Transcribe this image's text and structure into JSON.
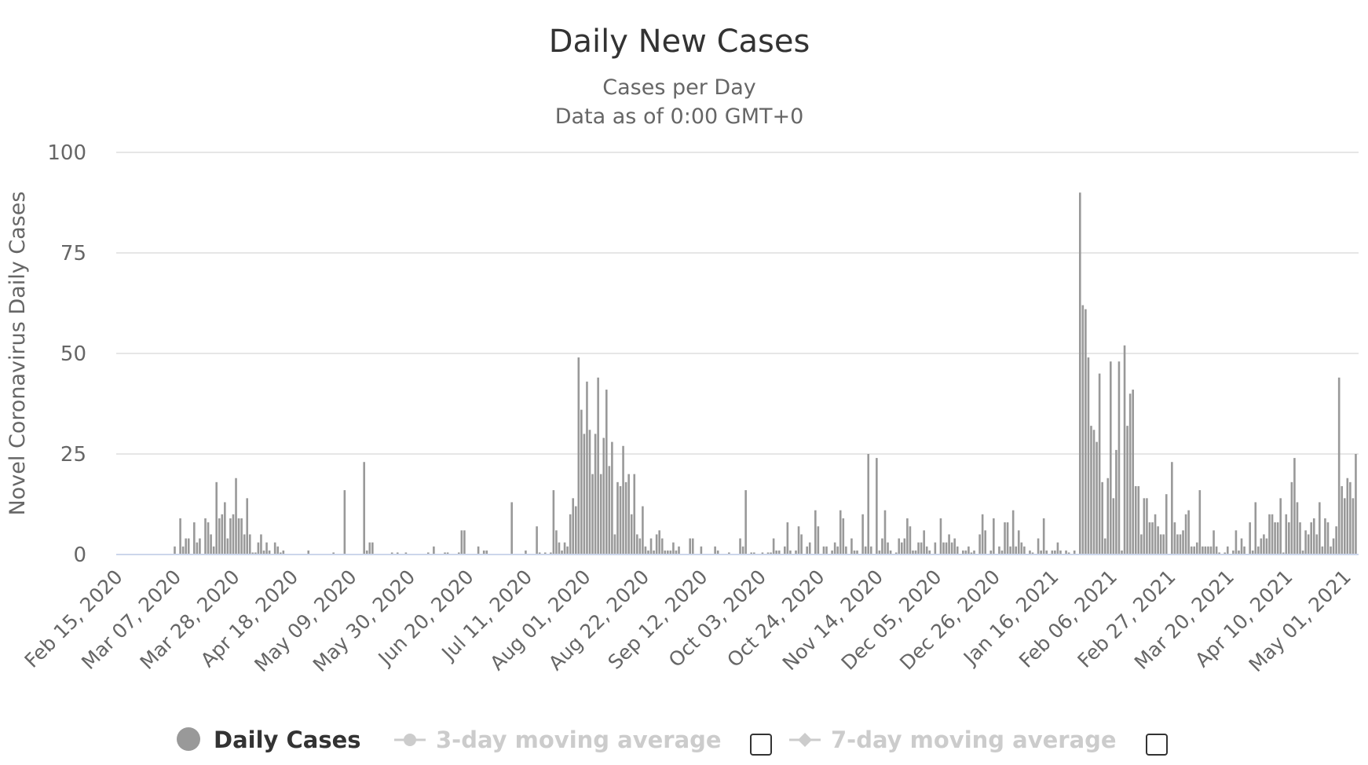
{
  "chart_data": {
    "type": "bar",
    "title": "Daily New Cases",
    "subtitle": [
      "Cases per Day",
      "Data as of 0:00 GMT+0"
    ],
    "xlabel": "",
    "ylabel": "Novel Coronavirus Daily Cases",
    "ylim": [
      0,
      100
    ],
    "yticks": [
      0,
      25,
      50,
      75,
      100
    ],
    "grid": true,
    "start_date": "2020-02-15",
    "x_unit": "days since start_date",
    "xlim_days": [
      -1,
      445
    ],
    "x_tick_days": [
      0,
      21,
      42,
      63,
      84,
      105,
      126,
      147,
      168,
      189,
      210,
      231,
      252,
      273,
      294,
      315,
      336,
      357,
      378,
      399,
      420,
      441
    ],
    "x_tick_labels": [
      "Feb 15, 2020",
      "Mar 07, 2020",
      "Mar 28, 2020",
      "Apr 18, 2020",
      "May 09, 2020",
      "May 30, 2020",
      "Jun 20, 2020",
      "Jul 11, 2020",
      "Aug 01, 2020",
      "Aug 22, 2020",
      "Sep 12, 2020",
      "Oct 03, 2020",
      "Oct 24, 2020",
      "Nov 14, 2020",
      "Dec 05, 2020",
      "Dec 26, 2020",
      "Jan 16, 2021",
      "Feb 06, 2021",
      "Feb 27, 2021",
      "Mar 20, 2021",
      "Apr 10, 2021",
      "May 01, 2021"
    ],
    "series": [
      {
        "name": "Daily Cases",
        "color": "#999999",
        "points": [
          [
            20,
            2
          ],
          [
            22,
            9
          ],
          [
            23,
            2
          ],
          [
            24,
            4
          ],
          [
            25,
            4
          ],
          [
            27,
            8
          ],
          [
            28,
            3
          ],
          [
            29,
            4
          ],
          [
            31,
            9
          ],
          [
            32,
            8
          ],
          [
            33,
            5
          ],
          [
            34,
            2
          ],
          [
            35,
            18
          ],
          [
            36,
            9
          ],
          [
            37,
            10
          ],
          [
            38,
            13
          ],
          [
            39,
            4
          ],
          [
            40,
            9
          ],
          [
            41,
            10
          ],
          [
            42,
            19
          ],
          [
            43,
            9
          ],
          [
            44,
            9
          ],
          [
            45,
            5
          ],
          [
            46,
            14
          ],
          [
            47,
            5
          ],
          [
            48,
            0.5
          ],
          [
            49,
            0.5
          ],
          [
            50,
            3
          ],
          [
            51,
            5
          ],
          [
            52,
            1
          ],
          [
            53,
            3
          ],
          [
            54,
            1
          ],
          [
            56,
            3
          ],
          [
            57,
            2
          ],
          [
            58,
            0.5
          ],
          [
            59,
            1
          ],
          [
            68,
            1
          ],
          [
            77,
            0.5
          ],
          [
            81,
            16
          ],
          [
            88,
            23
          ],
          [
            89,
            1
          ],
          [
            90,
            3
          ],
          [
            91,
            3
          ],
          [
            98,
            0.5
          ],
          [
            100,
            0.5
          ],
          [
            103,
            0.5
          ],
          [
            111,
            0.5
          ],
          [
            113,
            2
          ],
          [
            117,
            0.5
          ],
          [
            118,
            0.5
          ],
          [
            122,
            0.5
          ],
          [
            123,
            6
          ],
          [
            124,
            6
          ],
          [
            129,
            2
          ],
          [
            131,
            1
          ],
          [
            132,
            1
          ],
          [
            141,
            13
          ],
          [
            146,
            1
          ],
          [
            150,
            7
          ],
          [
            151,
            0.5
          ],
          [
            153,
            0.5
          ],
          [
            155,
            0.5
          ],
          [
            156,
            16
          ],
          [
            157,
            6
          ],
          [
            158,
            3
          ],
          [
            159,
            1
          ],
          [
            160,
            3
          ],
          [
            161,
            2
          ],
          [
            162,
            10
          ],
          [
            163,
            14
          ],
          [
            164,
            12
          ],
          [
            165,
            49
          ],
          [
            166,
            36
          ],
          [
            167,
            30
          ],
          [
            168,
            43
          ],
          [
            169,
            31
          ],
          [
            170,
            20
          ],
          [
            171,
            30
          ],
          [
            172,
            44
          ],
          [
            173,
            20
          ],
          [
            174,
            29
          ],
          [
            175,
            41
          ],
          [
            176,
            22
          ],
          [
            177,
            28
          ],
          [
            178,
            5
          ],
          [
            179,
            18
          ],
          [
            180,
            17
          ],
          [
            181,
            27
          ],
          [
            182,
            18
          ],
          [
            183,
            20
          ],
          [
            184,
            10
          ],
          [
            185,
            20
          ],
          [
            186,
            5
          ],
          [
            187,
            4
          ],
          [
            188,
            12
          ],
          [
            189,
            2
          ],
          [
            190,
            1
          ],
          [
            191,
            4
          ],
          [
            192,
            1
          ],
          [
            193,
            5
          ],
          [
            194,
            6
          ],
          [
            195,
            4
          ],
          [
            196,
            1
          ],
          [
            197,
            1
          ],
          [
            198,
            1
          ],
          [
            199,
            3
          ],
          [
            200,
            1
          ],
          [
            201,
            2
          ],
          [
            205,
            4
          ],
          [
            206,
            4
          ],
          [
            209,
            2
          ],
          [
            214,
            2
          ],
          [
            215,
            1
          ],
          [
            219,
            0.5
          ],
          [
            223,
            4
          ],
          [
            224,
            2
          ],
          [
            225,
            16
          ],
          [
            227,
            0.5
          ],
          [
            228,
            0.5
          ],
          [
            231,
            0.5
          ],
          [
            233,
            0.5
          ],
          [
            234,
            0.5
          ],
          [
            235,
            4
          ],
          [
            236,
            1
          ],
          [
            237,
            1
          ],
          [
            239,
            2
          ],
          [
            240,
            8
          ],
          [
            241,
            1
          ],
          [
            243,
            1
          ],
          [
            244,
            7
          ],
          [
            245,
            5
          ],
          [
            247,
            2
          ],
          [
            248,
            3
          ],
          [
            250,
            11
          ],
          [
            251,
            7
          ],
          [
            253,
            2
          ],
          [
            254,
            2
          ],
          [
            256,
            1
          ],
          [
            257,
            3
          ],
          [
            258,
            2
          ],
          [
            259,
            11
          ],
          [
            260,
            9
          ],
          [
            261,
            2
          ],
          [
            263,
            4
          ],
          [
            264,
            1
          ],
          [
            265,
            1
          ],
          [
            267,
            10
          ],
          [
            268,
            2
          ],
          [
            269,
            25
          ],
          [
            270,
            2
          ],
          [
            272,
            24
          ],
          [
            273,
            1
          ],
          [
            274,
            4
          ],
          [
            275,
            11
          ],
          [
            276,
            3
          ],
          [
            277,
            1
          ],
          [
            279,
            0.5
          ],
          [
            280,
            4
          ],
          [
            281,
            3
          ],
          [
            282,
            4
          ],
          [
            283,
            9
          ],
          [
            284,
            7
          ],
          [
            285,
            1
          ],
          [
            286,
            1
          ],
          [
            287,
            3
          ],
          [
            288,
            3
          ],
          [
            289,
            6
          ],
          [
            290,
            2
          ],
          [
            291,
            1
          ],
          [
            293,
            3
          ],
          [
            295,
            9
          ],
          [
            296,
            3
          ],
          [
            297,
            3
          ],
          [
            298,
            5
          ],
          [
            299,
            3
          ],
          [
            300,
            4
          ],
          [
            301,
            2
          ],
          [
            303,
            1
          ],
          [
            304,
            1
          ],
          [
            305,
            2
          ],
          [
            306,
            0.5
          ],
          [
            307,
            1
          ],
          [
            309,
            5
          ],
          [
            310,
            10
          ],
          [
            311,
            6
          ],
          [
            313,
            1
          ],
          [
            314,
            9
          ],
          [
            316,
            2
          ],
          [
            317,
            1
          ],
          [
            318,
            8
          ],
          [
            319,
            8
          ],
          [
            320,
            2
          ],
          [
            321,
            11
          ],
          [
            322,
            2
          ],
          [
            323,
            6
          ],
          [
            324,
            3
          ],
          [
            325,
            2
          ],
          [
            327,
            1
          ],
          [
            328,
            0.5
          ],
          [
            330,
            4
          ],
          [
            331,
            1
          ],
          [
            332,
            9
          ],
          [
            333,
            1
          ],
          [
            335,
            1
          ],
          [
            336,
            1
          ],
          [
            337,
            3
          ],
          [
            338,
            1
          ],
          [
            340,
            1
          ],
          [
            341,
            0.5
          ],
          [
            343,
            1
          ],
          [
            345,
            90
          ],
          [
            346,
            62
          ],
          [
            347,
            61
          ],
          [
            348,
            49
          ],
          [
            349,
            32
          ],
          [
            350,
            31
          ],
          [
            351,
            28
          ],
          [
            352,
            45
          ],
          [
            353,
            18
          ],
          [
            354,
            4
          ],
          [
            355,
            19
          ],
          [
            356,
            48
          ],
          [
            357,
            14
          ],
          [
            358,
            26
          ],
          [
            359,
            48
          ],
          [
            360,
            1
          ],
          [
            361,
            52
          ],
          [
            362,
            32
          ],
          [
            363,
            40
          ],
          [
            364,
            41
          ],
          [
            365,
            17
          ],
          [
            366,
            17
          ],
          [
            367,
            5
          ],
          [
            368,
            14
          ],
          [
            369,
            14
          ],
          [
            370,
            8
          ],
          [
            371,
            8
          ],
          [
            372,
            10
          ],
          [
            373,
            7
          ],
          [
            374,
            5
          ],
          [
            375,
            5
          ],
          [
            376,
            15
          ],
          [
            378,
            23
          ],
          [
            379,
            8
          ],
          [
            380,
            5
          ],
          [
            381,
            5
          ],
          [
            382,
            6
          ],
          [
            383,
            10
          ],
          [
            384,
            11
          ],
          [
            385,
            2
          ],
          [
            386,
            2
          ],
          [
            387,
            3
          ],
          [
            388,
            16
          ],
          [
            389,
            2
          ],
          [
            390,
            2
          ],
          [
            391,
            2
          ],
          [
            392,
            2
          ],
          [
            393,
            6
          ],
          [
            394,
            2
          ],
          [
            395,
            0.5
          ],
          [
            397,
            0.5
          ],
          [
            398,
            2
          ],
          [
            400,
            1
          ],
          [
            401,
            6
          ],
          [
            402,
            1
          ],
          [
            403,
            4
          ],
          [
            404,
            2
          ],
          [
            406,
            8
          ],
          [
            407,
            1
          ],
          [
            408,
            13
          ],
          [
            409,
            2
          ],
          [
            410,
            4
          ],
          [
            411,
            5
          ],
          [
            412,
            4
          ],
          [
            413,
            10
          ],
          [
            414,
            10
          ],
          [
            415,
            8
          ],
          [
            416,
            8
          ],
          [
            417,
            14
          ],
          [
            418,
            0.5
          ],
          [
            419,
            10
          ],
          [
            420,
            8
          ],
          [
            421,
            18
          ],
          [
            422,
            24
          ],
          [
            423,
            13
          ],
          [
            424,
            8
          ],
          [
            425,
            1
          ],
          [
            426,
            6
          ],
          [
            427,
            5
          ],
          [
            428,
            8
          ],
          [
            429,
            9
          ],
          [
            430,
            5
          ],
          [
            431,
            13
          ],
          [
            432,
            2
          ],
          [
            433,
            9
          ],
          [
            434,
            8
          ],
          [
            435,
            2
          ],
          [
            436,
            4
          ],
          [
            437,
            7
          ],
          [
            438,
            44
          ],
          [
            439,
            17
          ],
          [
            440,
            14
          ],
          [
            441,
            19
          ],
          [
            442,
            18
          ],
          [
            443,
            14
          ],
          [
            444,
            25
          ]
        ]
      }
    ],
    "legend": {
      "placement": "bottom",
      "items": [
        {
          "label": "Daily Cases",
          "enabled": true
        },
        {
          "label": "3-day moving average",
          "enabled": false
        },
        {
          "label": "7-day moving average",
          "enabled": false
        }
      ]
    }
  }
}
